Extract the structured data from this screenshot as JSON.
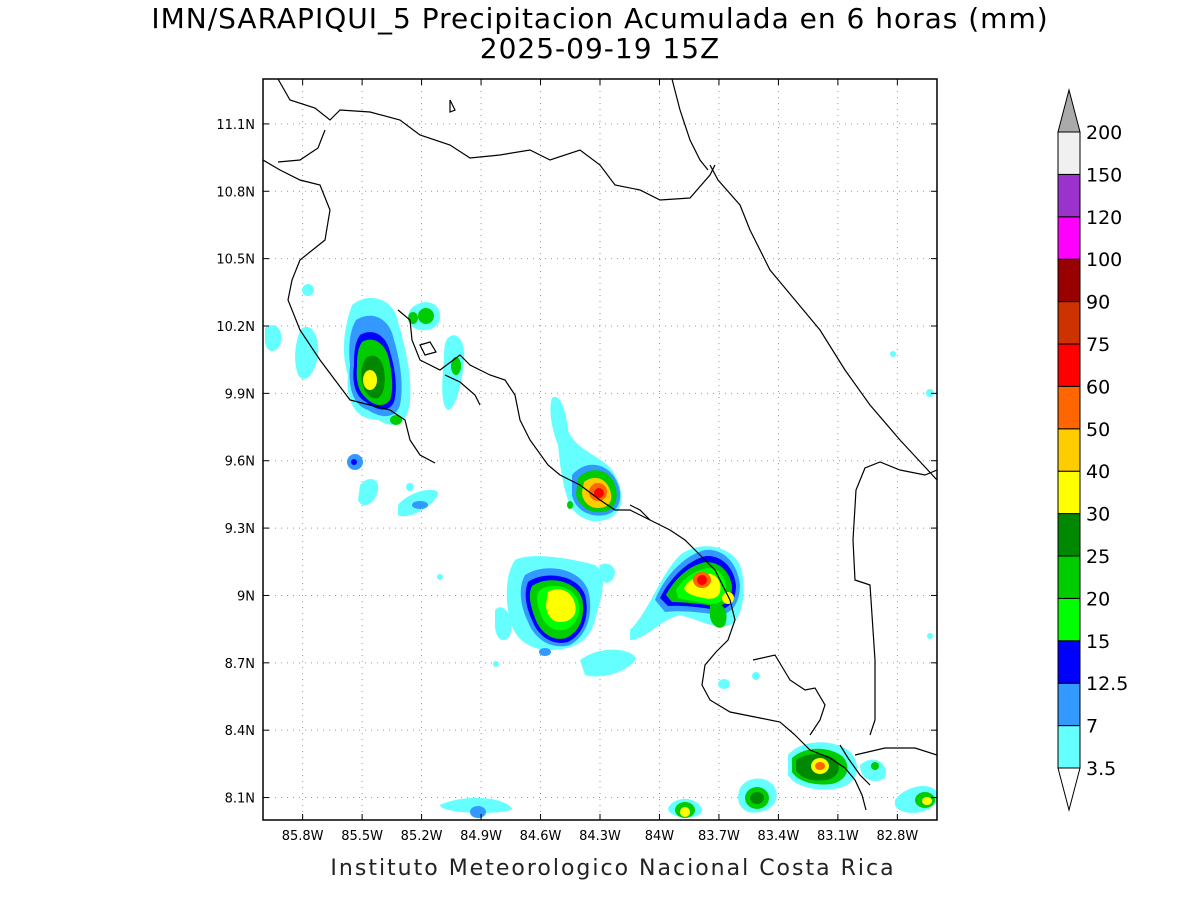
{
  "title": {
    "line1": "IMN/SARAPIQUI_5 Precipitacion Acumulada en 6 horas (mm)",
    "line2": "2025-09-19 15Z"
  },
  "footer": "Instituto Meteorologico Nacional Costa Rica",
  "map": {
    "lon_range": [
      -86.0,
      -82.6
    ],
    "lat_range": [
      8.0,
      11.3
    ],
    "lon_ticks": [
      "85.8W",
      "85.5W",
      "85.2W",
      "84.9W",
      "84.6W",
      "84.3W",
      "84W",
      "83.7W",
      "83.4W",
      "83.1W",
      "82.8W"
    ],
    "lat_ticks": [
      "11.1N",
      "10.8N",
      "10.5N",
      "10.2N",
      "9.9N",
      "9.6N",
      "9.3N",
      "9N",
      "8.7N",
      "8.4N",
      "8.1N"
    ],
    "grid": "dotted"
  },
  "colorbar": {
    "labels": [
      "3.5",
      "7",
      "12.5",
      "15",
      "20",
      "25",
      "30",
      "40",
      "50",
      "60",
      "75",
      "90",
      "100",
      "120",
      "150",
      "200"
    ],
    "colors": [
      "#ffffff",
      "#66ffff",
      "#3399ff",
      "#0000ff",
      "#00ff00",
      "#00cc00",
      "#008800",
      "#ffff00",
      "#ffcc00",
      "#ff6600",
      "#ff0000",
      "#cc3300",
      "#990000",
      "#ff00ff",
      "#9933cc",
      "#f0f0f0",
      "#aaaaaa"
    ]
  }
}
